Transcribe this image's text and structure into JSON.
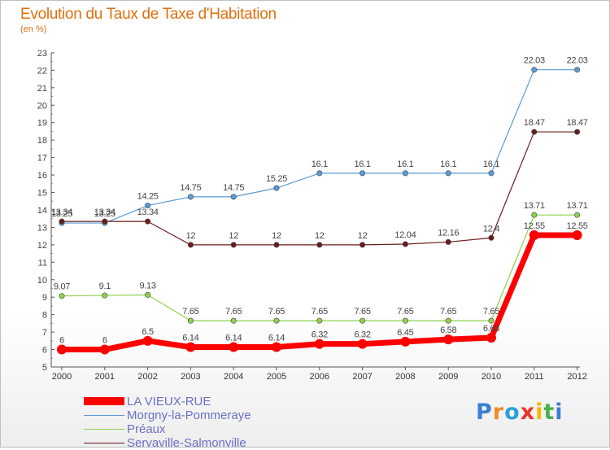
{
  "chart_data": {
    "type": "line",
    "title": "Evolution du Taux de Taxe d'Habitation",
    "subtitle": "(en %)",
    "x": [
      "2000",
      "2001",
      "2002",
      "2003",
      "2004",
      "2005",
      "2006",
      "2007",
      "2008",
      "2009",
      "2010",
      "2011",
      "2012"
    ],
    "ylim": [
      5,
      23
    ],
    "yticks": [
      "5",
      "6",
      "7",
      "8",
      "9",
      "10",
      "11",
      "12",
      "13",
      "14",
      "15",
      "16",
      "17",
      "18",
      "19",
      "20",
      "21",
      "22",
      "23"
    ],
    "grid": false,
    "legend_position": "bottom-left",
    "series": [
      {
        "name": "Morgny-la-Pommeraye",
        "color": "#5b9bd5",
        "values": [
          13.25,
          13.25,
          14.25,
          14.75,
          14.75,
          15.25,
          16.1,
          16.1,
          16.1,
          16.1,
          16.1,
          22.03,
          22.03
        ],
        "labels": [
          "13.25",
          "13.25",
          "14.25",
          "14.75",
          "14.75",
          "15.25",
          "16.1",
          "16.1",
          "16.1",
          "16.1",
          "16.1",
          "22.03",
          "22.03"
        ]
      },
      {
        "name": "Servaville-Salmonville",
        "color": "#6b1c1c",
        "values": [
          13.34,
          13.34,
          13.34,
          12,
          12,
          12,
          12,
          12,
          12.04,
          12.16,
          12.4,
          18.47,
          18.47
        ],
        "labels": [
          "13.34",
          "13.34",
          "13.34",
          "12",
          "12",
          "12",
          "12",
          "12",
          "12.04",
          "12.16",
          "12.4",
          "18.47",
          "18.47"
        ]
      },
      {
        "name": "Préaux",
        "color": "#8fd14f",
        "values": [
          9.07,
          9.1,
          9.13,
          7.65,
          7.65,
          7.65,
          7.65,
          7.65,
          7.65,
          7.65,
          7.65,
          13.71,
          13.71
        ],
        "labels": [
          "9.07",
          "9.1",
          "9.13",
          "7.65",
          "7.65",
          "7.65",
          "7.65",
          "7.65",
          "7.65",
          "7.65",
          "7.65",
          "13.71",
          "13.71"
        ]
      },
      {
        "name": "LA VIEUX-RUE",
        "color": "#ff0000",
        "values": [
          6,
          6,
          6.5,
          6.14,
          6.14,
          6.14,
          6.32,
          6.32,
          6.45,
          6.58,
          6.68,
          12.55,
          12.55
        ],
        "labels": [
          "6",
          "6",
          "6.5",
          "6.14",
          "6.14",
          "6.14",
          "6.32",
          "6.32",
          "6.45",
          "6.58",
          "6.68",
          "12.55",
          "12.55"
        ]
      }
    ]
  },
  "legend": {
    "items": [
      {
        "label": "LA VIEUX-RUE",
        "color": "#ff0000"
      },
      {
        "label": "Morgny-la-Pommeraye",
        "color": "#5b9bd5"
      },
      {
        "label": "Préaux",
        "color": "#8fd14f"
      },
      {
        "label": "Servaville-Salmonville",
        "color": "#6b1c1c"
      }
    ]
  },
  "logo": {
    "text": "Proxiti",
    "colors": [
      "#3a7fd0",
      "#f08a24",
      "#2e9fd8",
      "#e8352a",
      "#f5b800",
      "#4cae4c",
      "#3a7fd0"
    ]
  }
}
